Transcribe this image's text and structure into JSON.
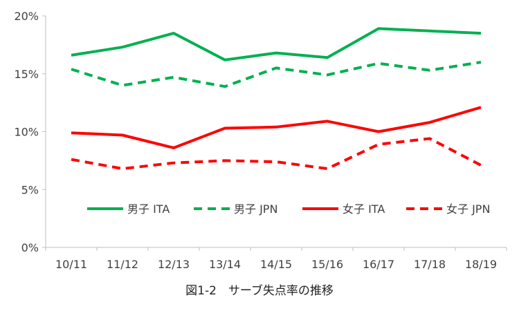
{
  "chart_data": {
    "type": "line",
    "title": "",
    "xlabel": "",
    "ylabel": "",
    "categories": [
      "10/11",
      "11/12",
      "12/13",
      "13/14",
      "14/15",
      "15/16",
      "16/17",
      "17/18",
      "18/19"
    ],
    "ylim": [
      0,
      20
    ],
    "yticks": [
      0,
      5,
      10,
      15,
      20
    ],
    "ytick_labels": [
      "0%",
      "5%",
      "10%",
      "15%",
      "20%"
    ],
    "grid": false,
    "legend_position": "inside-bottom",
    "series": [
      {
        "name": "男子 ITA",
        "color": "#00B050",
        "dash": "solid",
        "values": [
          16.6,
          17.3,
          18.5,
          16.2,
          16.8,
          16.4,
          18.9,
          18.7,
          18.5
        ]
      },
      {
        "name": "男子 JPN",
        "color": "#00B050",
        "dash": "dashed",
        "values": [
          15.4,
          14.0,
          14.7,
          13.9,
          15.5,
          14.9,
          15.9,
          15.3,
          16.0
        ]
      },
      {
        "name": "女子 ITA",
        "color": "#FF0000",
        "dash": "solid",
        "values": [
          9.9,
          9.7,
          8.6,
          10.3,
          10.4,
          10.9,
          10.0,
          10.8,
          12.1
        ]
      },
      {
        "name": "女子 JPN",
        "color": "#FF0000",
        "dash": "dashed",
        "values": [
          7.6,
          6.8,
          7.3,
          7.5,
          7.4,
          6.8,
          8.9,
          9.4,
          7.1
        ]
      }
    ]
  },
  "caption": "図1-2　サーブ失点率の推移"
}
